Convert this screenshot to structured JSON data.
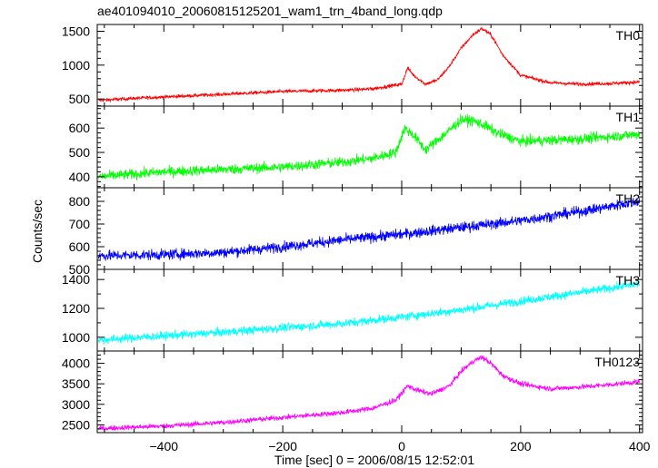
{
  "chart_data": {
    "type": "line",
    "title": "ae401094010_20060815125201_wam1_trn_4band_long.qdp",
    "xlabel": "Time [sec] 0 = 2006/08/15 12:52:01",
    "ylabel": "Counts/sec",
    "xlim": [
      -512,
      405
    ],
    "x_ticks": [
      -400,
      -200,
      0,
      200,
      400
    ],
    "panels": [
      {
        "name": "TH0",
        "color": "#ff0000",
        "ylim": [
          395,
          1600
        ],
        "y_ticks": [
          500,
          1000,
          1500
        ],
        "x": [
          -510,
          -450,
          -400,
          -300,
          -200,
          -100,
          -50,
          0,
          10,
          20,
          40,
          60,
          80,
          100,
          120,
          135,
          150,
          170,
          200,
          250,
          300,
          350,
          400
        ],
        "y": [
          480,
          510,
          530,
          570,
          610,
          630,
          650,
          720,
          960,
          850,
          720,
          780,
          980,
          1250,
          1450,
          1540,
          1450,
          1150,
          850,
          740,
          720,
          730,
          750
        ],
        "noise": 25
      },
      {
        "name": "TH1",
        "color": "#00ff00",
        "ylim": [
          355,
          690
        ],
        "y_ticks": [
          400,
          500,
          600
        ],
        "x": [
          -510,
          -400,
          -300,
          -200,
          -100,
          -50,
          -10,
          5,
          20,
          40,
          60,
          80,
          100,
          120,
          140,
          160,
          200,
          300,
          400
        ],
        "y": [
          400,
          420,
          430,
          440,
          460,
          475,
          500,
          600,
          570,
          510,
          550,
          590,
          635,
          630,
          610,
          580,
          545,
          555,
          575
        ],
        "noise": 20
      },
      {
        "name": "TH2",
        "color": "#0000ff",
        "ylim": [
          500,
          860
        ],
        "y_ticks": [
          500,
          600,
          700,
          800
        ],
        "x": [
          -510,
          -400,
          -300,
          -200,
          -100,
          0,
          100,
          200,
          300,
          400
        ],
        "y": [
          560,
          565,
          575,
          600,
          630,
          655,
          685,
          715,
          755,
          800
        ],
        "noise": 22
      },
      {
        "name": "TH3",
        "color": "#00ffff",
        "ylim": [
          905,
          1470
        ],
        "y_ticks": [
          1000,
          1200,
          1400
        ],
        "x": [
          -510,
          -400,
          -300,
          -200,
          -100,
          0,
          100,
          200,
          300,
          400
        ],
        "y": [
          980,
          1010,
          1035,
          1065,
          1095,
          1140,
          1190,
          1250,
          1310,
          1370
        ],
        "noise": 28
      },
      {
        "name": "TH0123",
        "color": "#ff00ff",
        "ylim": [
          2310,
          4300
        ],
        "y_ticks": [
          2500,
          3000,
          3500,
          4000
        ],
        "x": [
          -510,
          -400,
          -300,
          -200,
          -100,
          -50,
          -10,
          10,
          25,
          50,
          80,
          100,
          120,
          135,
          150,
          170,
          200,
          250,
          300,
          350,
          400
        ],
        "y": [
          2410,
          2470,
          2560,
          2680,
          2800,
          2900,
          3100,
          3450,
          3350,
          3250,
          3450,
          3800,
          4050,
          4150,
          4000,
          3700,
          3500,
          3380,
          3420,
          3480,
          3550
        ],
        "noise": 60
      }
    ]
  }
}
